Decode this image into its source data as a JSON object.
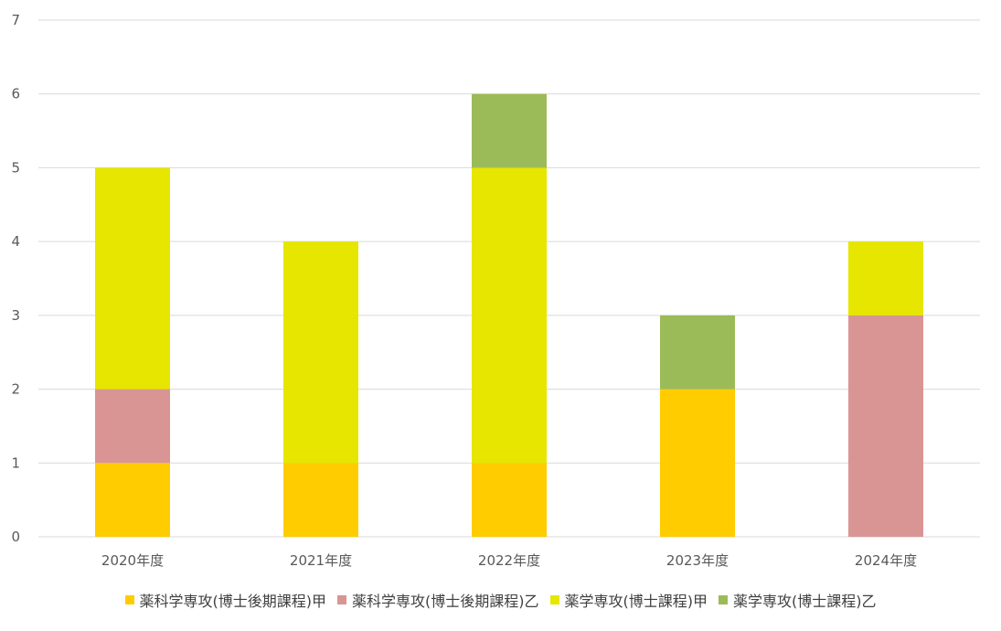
{
  "chart_data": {
    "type": "bar",
    "stacked": true,
    "categories": [
      "2020年度",
      "2021年度",
      "2022年度",
      "2023年度",
      "2024年度"
    ],
    "series": [
      {
        "name": "薬科学専攻(博士後期課程)甲",
        "color": "#ffcc00",
        "values": [
          1,
          1,
          1,
          2,
          0
        ]
      },
      {
        "name": "薬科学専攻(博士後期課程)乙",
        "color": "#d99594",
        "values": [
          1,
          0,
          0,
          0,
          3
        ]
      },
      {
        "name": "薬学専攻(博士課程)甲",
        "color": "#e6e600",
        "values": [
          3,
          3,
          4,
          0,
          1
        ]
      },
      {
        "name": "薬学専攻(博士課程)乙",
        "color": "#9bbb59",
        "values": [
          0,
          0,
          1,
          1,
          0
        ]
      }
    ],
    "yticks": [
      "0",
      "1",
      "2",
      "3",
      "4",
      "5",
      "6",
      "7"
    ],
    "ylim": [
      0,
      7
    ],
    "grid": true,
    "legend_position": "bottom"
  }
}
